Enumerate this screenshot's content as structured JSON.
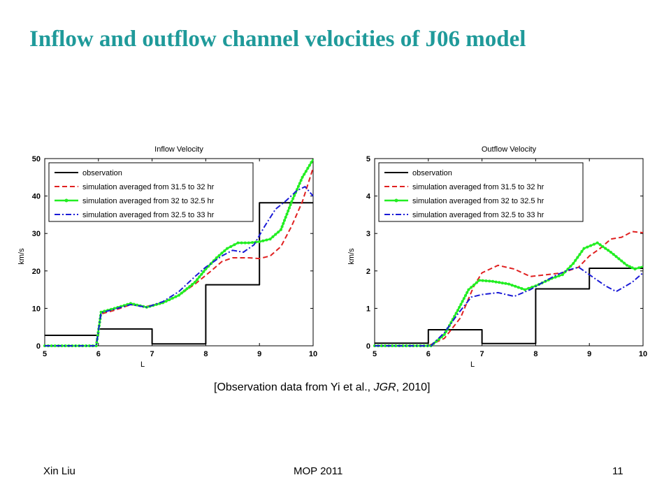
{
  "slide": {
    "title": "Inflow and outflow channel velocities of J06 model",
    "caption_before": "[Observation data from Yi et al., ",
    "caption_italic": "JGR",
    "caption_after": ", 2010]",
    "footer_left": "Xin Liu",
    "footer_center": "MOP 2011",
    "footer_right": "11"
  },
  "chart_data": [
    {
      "type": "line",
      "title": "Inflow Velocity",
      "xlabel": "L",
      "ylabel": "km/s",
      "xlim": [
        5,
        10
      ],
      "ylim": [
        0,
        50
      ],
      "xticks": [
        "5",
        "6",
        "7",
        "8",
        "9",
        "10"
      ],
      "yticks": [
        "0",
        "10",
        "20",
        "30",
        "40",
        "50"
      ],
      "legend_position": "top-left",
      "series": [
        {
          "name": "observation",
          "color": "#000000",
          "style": "solid",
          "points": [
            [
              5,
              2.8
            ],
            [
              6,
              2.8
            ],
            [
              6,
              4.5
            ],
            [
              7,
              4.5
            ],
            [
              7,
              0.5
            ],
            [
              8,
              0.5
            ],
            [
              8,
              16.3
            ],
            [
              9,
              16.3
            ],
            [
              9,
              38.2
            ],
            [
              10,
              38.2
            ]
          ]
        },
        {
          "name": "simulation averaged from 31.5 to 32 hr",
          "color": "#e02020",
          "style": "dashed",
          "points": [
            [
              5,
              0
            ],
            [
              5.95,
              0
            ],
            [
              6.05,
              8.5
            ],
            [
              6.3,
              9.5
            ],
            [
              6.6,
              11
            ],
            [
              6.9,
              10.5
            ],
            [
              7.2,
              11.5
            ],
            [
              7.5,
              13.5
            ],
            [
              7.8,
              16.5
            ],
            [
              8.1,
              20
            ],
            [
              8.3,
              22.5
            ],
            [
              8.5,
              23.5
            ],
            [
              8.8,
              23.5
            ],
            [
              9.0,
              23.3
            ],
            [
              9.2,
              24
            ],
            [
              9.4,
              26.5
            ],
            [
              9.6,
              32
            ],
            [
              9.8,
              38.5
            ],
            [
              10,
              47.5
            ]
          ]
        },
        {
          "name": "simulation averaged from 32 to 32.5 hr",
          "color": "#22ee22",
          "style": "solid-dots",
          "points": [
            [
              5,
              0
            ],
            [
              5.96,
              0
            ],
            [
              6.05,
              9
            ],
            [
              6.3,
              10
            ],
            [
              6.6,
              11.3
            ],
            [
              6.9,
              10.3
            ],
            [
              7.2,
              11.5
            ],
            [
              7.5,
              13.5
            ],
            [
              7.8,
              17
            ],
            [
              8.0,
              20.5
            ],
            [
              8.2,
              23.5
            ],
            [
              8.4,
              26
            ],
            [
              8.6,
              27.5
            ],
            [
              8.8,
              27.5
            ],
            [
              9.0,
              27.8
            ],
            [
              9.2,
              28.5
            ],
            [
              9.4,
              31
            ],
            [
              9.6,
              38.5
            ],
            [
              9.8,
              45
            ],
            [
              10,
              49.8
            ]
          ]
        },
        {
          "name": "simulation averaged from 32.5 to 33 hr",
          "color": "#1a1ad6",
          "style": "dashdot",
          "points": [
            [
              5,
              0
            ],
            [
              5.96,
              0
            ],
            [
              6.05,
              8.8
            ],
            [
              6.3,
              9.8
            ],
            [
              6.6,
              11
            ],
            [
              6.9,
              10.3
            ],
            [
              7.2,
              11.8
            ],
            [
              7.5,
              14.5
            ],
            [
              7.8,
              18.5
            ],
            [
              8.0,
              21
            ],
            [
              8.3,
              24
            ],
            [
              8.5,
              25.5
            ],
            [
              8.7,
              25
            ],
            [
              8.9,
              27
            ],
            [
              9.1,
              32
            ],
            [
              9.3,
              36.5
            ],
            [
              9.5,
              38.8
            ],
            [
              9.7,
              41.5
            ],
            [
              9.85,
              42.5
            ],
            [
              10,
              40
            ]
          ]
        }
      ]
    },
    {
      "type": "line",
      "title": "Outflow Velocity",
      "xlabel": "L",
      "ylabel": "km/s",
      "xlim": [
        5,
        10
      ],
      "ylim": [
        0,
        5
      ],
      "xticks": [
        "5",
        "6",
        "7",
        "8",
        "9",
        "10"
      ],
      "yticks": [
        "0",
        "1",
        "2",
        "3",
        "4",
        "5"
      ],
      "legend_position": "top-left",
      "series": [
        {
          "name": "observation",
          "color": "#000000",
          "style": "solid",
          "points": [
            [
              5,
              0.07
            ],
            [
              6,
              0.07
            ],
            [
              6,
              0.43
            ],
            [
              7,
              0.43
            ],
            [
              7,
              0.06
            ],
            [
              8,
              0.06
            ],
            [
              8,
              1.52
            ],
            [
              9,
              1.52
            ],
            [
              9,
              2.07
            ],
            [
              10,
              2.07
            ]
          ]
        },
        {
          "name": "simulation averaged from 31.5 to 32 hr",
          "color": "#e02020",
          "style": "dashed",
          "points": [
            [
              5,
              0
            ],
            [
              6.0,
              0
            ],
            [
              6.3,
              0.2
            ],
            [
              6.6,
              0.75
            ],
            [
              6.85,
              1.6
            ],
            [
              7.0,
              1.95
            ],
            [
              7.3,
              2.15
            ],
            [
              7.6,
              2.05
            ],
            [
              7.9,
              1.85
            ],
            [
              8.2,
              1.9
            ],
            [
              8.5,
              1.95
            ],
            [
              8.8,
              2.1
            ],
            [
              9.0,
              2.4
            ],
            [
              9.2,
              2.6
            ],
            [
              9.4,
              2.85
            ],
            [
              9.6,
              2.9
            ],
            [
              9.8,
              3.05
            ],
            [
              10,
              3.02
            ]
          ]
        },
        {
          "name": "simulation averaged from 32 to 32.5 hr",
          "color": "#22ee22",
          "style": "solid-dots",
          "points": [
            [
              5,
              0
            ],
            [
              6.05,
              0
            ],
            [
              6.3,
              0.3
            ],
            [
              6.55,
              0.95
            ],
            [
              6.75,
              1.5
            ],
            [
              6.95,
              1.75
            ],
            [
              7.2,
              1.72
            ],
            [
              7.5,
              1.65
            ],
            [
              7.8,
              1.5
            ],
            [
              8.0,
              1.6
            ],
            [
              8.3,
              1.8
            ],
            [
              8.5,
              1.9
            ],
            [
              8.7,
              2.2
            ],
            [
              8.9,
              2.6
            ],
            [
              9.15,
              2.75
            ],
            [
              9.4,
              2.5
            ],
            [
              9.7,
              2.15
            ],
            [
              9.85,
              2.05
            ],
            [
              10,
              2.12
            ]
          ]
        },
        {
          "name": "simulation averaged from 32.5 to 33 hr",
          "color": "#1a1ad6",
          "style": "dashdot",
          "points": [
            [
              5,
              0
            ],
            [
              6.05,
              0
            ],
            [
              6.3,
              0.35
            ],
            [
              6.55,
              0.85
            ],
            [
              6.8,
              1.3
            ],
            [
              7.0,
              1.37
            ],
            [
              7.3,
              1.42
            ],
            [
              7.6,
              1.32
            ],
            [
              7.9,
              1.5
            ],
            [
              8.2,
              1.75
            ],
            [
              8.4,
              1.9
            ],
            [
              8.6,
              2.02
            ],
            [
              8.8,
              2.1
            ],
            [
              9.0,
              1.9
            ],
            [
              9.3,
              1.6
            ],
            [
              9.5,
              1.45
            ],
            [
              9.8,
              1.7
            ],
            [
              10,
              1.95
            ]
          ]
        }
      ]
    }
  ]
}
